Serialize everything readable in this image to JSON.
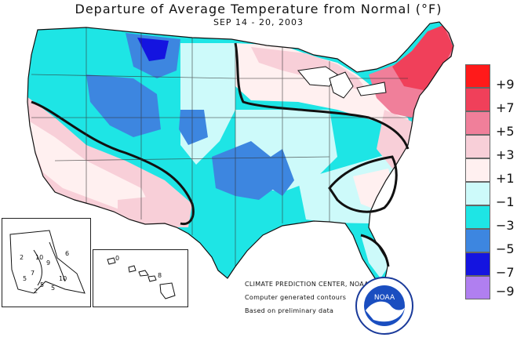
{
  "title": "Departure of Average Temperature from Normal (°F)",
  "subtitle": "SEP 14 - 20, 2003",
  "legend": [
    {
      "label": "+9",
      "color": "#ff1a1a"
    },
    {
      "label": "+7",
      "color": "#f0405a"
    },
    {
      "label": "+5",
      "color": "#f07f9a"
    },
    {
      "label": "+3",
      "color": "#f8cfd8"
    },
    {
      "label": "+1",
      "color": "#fff0f0"
    },
    {
      "label": "−1",
      "color": "#cdfafa"
    },
    {
      "label": "−3",
      "color": "#1ee5e5"
    },
    {
      "label": "−5",
      "color": "#3d86e0"
    },
    {
      "label": "−7",
      "color": "#1414e0"
    },
    {
      "label": "−9",
      "color": "#b07ff0"
    }
  ],
  "credits": {
    "center": "CLIMATE PREDICTION CENTER, NOAA",
    "line2": "Computer generated contours",
    "line3": "Based on preliminary data"
  },
  "logo": {
    "text": "NOAA"
  },
  "alaska_labels": [
    "2",
    "10",
    "9",
    "6",
    "7",
    "5",
    "10",
    "5",
    "5",
    "2"
  ],
  "hawaii_labels": [
    "0",
    "8"
  ]
}
